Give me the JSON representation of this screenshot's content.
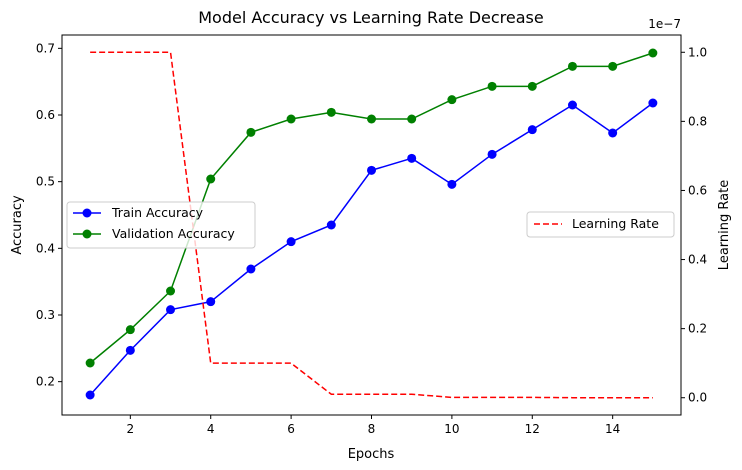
{
  "chart_data": {
    "type": "line",
    "title": "Model Accuracy vs Learning Rate Decrease",
    "xlabel": "Epochs",
    "ylabel": "Accuracy",
    "y2label": "Learning Rate",
    "y2_offset_label": "1e−7",
    "x": [
      1,
      2,
      3,
      4,
      5,
      6,
      7,
      8,
      9,
      10,
      11,
      12,
      13,
      14,
      15
    ],
    "xlim": [
      0.3,
      15.7
    ],
    "ylim": [
      0.15,
      0.72
    ],
    "y2lim": [
      -0.05,
      1.05
    ],
    "xticks": [
      2,
      4,
      6,
      8,
      10,
      12,
      14
    ],
    "yticks": [
      0.2,
      0.3,
      0.4,
      0.5,
      0.6,
      0.7
    ],
    "y2ticks": [
      0.0,
      0.2,
      0.4,
      0.6,
      0.8,
      1.0
    ],
    "grid": false,
    "series": [
      {
        "name": "Train Accuracy",
        "axis": "left",
        "color": "#0000ff",
        "style": "solid",
        "marker": "circle",
        "values": [
          0.18,
          0.247,
          0.308,
          0.32,
          0.369,
          0.41,
          0.435,
          0.517,
          0.535,
          0.496,
          0.541,
          0.578,
          0.615,
          0.573,
          0.618
        ]
      },
      {
        "name": "Validation Accuracy",
        "axis": "left",
        "color": "#008000",
        "style": "solid",
        "marker": "circle",
        "values": [
          0.228,
          0.278,
          0.336,
          0.504,
          0.574,
          0.594,
          0.604,
          0.594,
          0.594,
          0.623,
          0.643,
          0.643,
          0.673,
          0.673,
          0.693
        ]
      },
      {
        "name": "Learning Rate",
        "axis": "right",
        "color": "#ff0000",
        "style": "dashed",
        "marker": "none",
        "values": [
          1.0,
          1.0,
          1.0,
          0.1,
          0.1,
          0.1,
          0.01,
          0.01,
          0.01,
          0.001,
          0.001,
          0.001,
          0.0001,
          0.0001,
          0.0001
        ]
      }
    ],
    "legends": [
      {
        "placement": "center-left",
        "entries": [
          "Train Accuracy",
          "Validation Accuracy"
        ]
      },
      {
        "placement": "center-right",
        "entries": [
          "Learning Rate"
        ]
      }
    ]
  }
}
